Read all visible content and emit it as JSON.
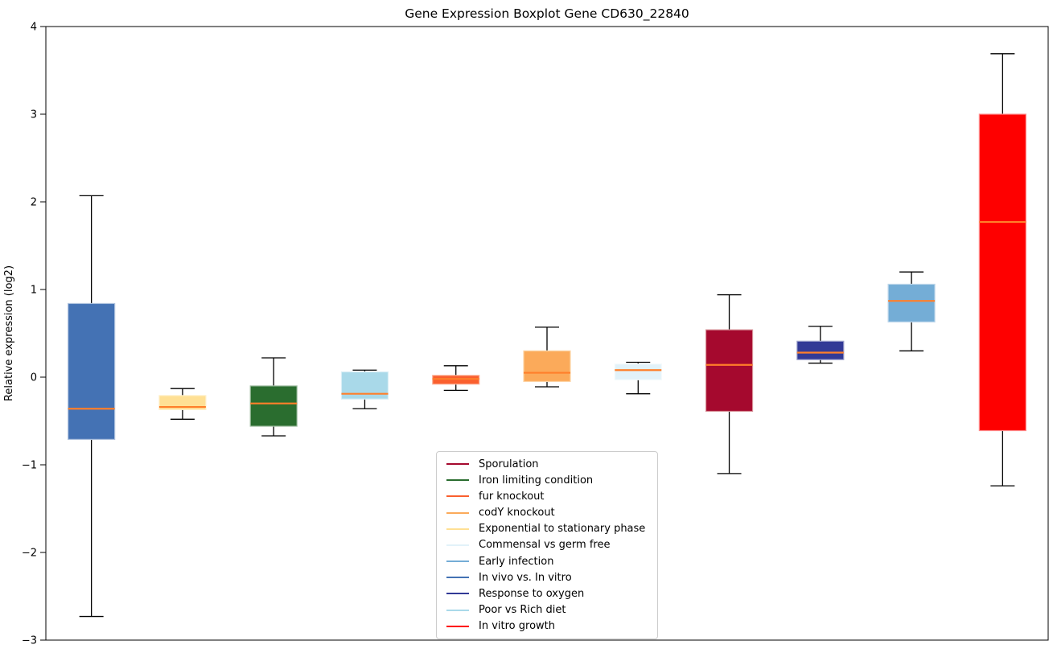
{
  "chart_data": {
    "type": "boxplot",
    "title": "Gene Expression Boxplot Gene CD630_22840",
    "ylabel": "Relative expression (log2)",
    "xlabel": "",
    "ylim": [
      -3,
      4
    ],
    "yticks": [
      4,
      3,
      2,
      1,
      0,
      -1,
      -2,
      -3
    ],
    "grid": false,
    "legend_position": "inside lower-center",
    "axis_color": "#000000",
    "whisker_color": "#000000",
    "median_color": "#ff7f2a",
    "series": [
      {
        "name": "In vivo vs. In vitro",
        "color": "#4472b4",
        "edge": "#abc0dd",
        "whisker_low": -2.73,
        "q1": -0.71,
        "median": -0.36,
        "q3": 0.84,
        "whisker_high": 2.07
      },
      {
        "name": "Exponential to stationary phase",
        "color": "#ffe094",
        "edge": "#ffefc9",
        "whisker_low": -0.48,
        "q1": -0.37,
        "median": -0.34,
        "q3": -0.21,
        "whisker_high": -0.13
      },
      {
        "name": "Iron limiting condition",
        "color": "#2a6d2f",
        "edge": "#9fbda1",
        "whisker_low": -0.67,
        "q1": -0.56,
        "median": -0.3,
        "q3": -0.1,
        "whisker_high": 0.22
      },
      {
        "name": "Poor vs Rich diet",
        "color": "#a9d9e9",
        "edge": "#d9eef5",
        "whisker_low": -0.36,
        "q1": -0.25,
        "median": -0.19,
        "q3": 0.06,
        "whisker_high": 0.08
      },
      {
        "name": "fur knockout",
        "color": "#fa5f2e",
        "edge": "#fcaf96",
        "whisker_low": -0.15,
        "q1": -0.08,
        "median": -0.02,
        "q3": 0.02,
        "whisker_high": 0.13
      },
      {
        "name": "codY knockout",
        "color": "#fbaa5a",
        "edge": "#fdd4a5",
        "whisker_low": -0.11,
        "q1": -0.05,
        "median": 0.05,
        "q3": 0.3,
        "whisker_high": 0.57
      },
      {
        "name": "Commensal vs germ free",
        "color": "#e2f2f9",
        "edge": "#f3fafc",
        "whisker_low": -0.19,
        "q1": -0.03,
        "median": 0.08,
        "q3": 0.15,
        "whisker_high": 0.17
      },
      {
        "name": "Sporulation",
        "color": "#a5092e",
        "edge": "#d79097",
        "whisker_low": -1.1,
        "q1": -0.39,
        "median": 0.14,
        "q3": 0.54,
        "whisker_high": 0.94
      },
      {
        "name": "Response to oxygen",
        "color": "#323a96",
        "edge": "#9da1cb",
        "whisker_low": 0.16,
        "q1": 0.2,
        "median": 0.28,
        "q3": 0.41,
        "whisker_high": 0.58
      },
      {
        "name": "Early infection",
        "color": "#74add6",
        "edge": "#bcd6ea",
        "whisker_low": 0.3,
        "q1": 0.63,
        "median": 0.87,
        "q3": 1.06,
        "whisker_high": 1.2
      },
      {
        "name": "In vitro growth",
        "color": "#fe0000",
        "edge": "#ff8c8c",
        "whisker_low": -1.24,
        "q1": -0.61,
        "median": 1.77,
        "q3": 3.0,
        "whisker_high": 3.69
      }
    ],
    "legend": [
      {
        "label": "Sporulation",
        "color": "#a5092e"
      },
      {
        "label": "Iron limiting condition",
        "color": "#2a6d2f"
      },
      {
        "label": "fur knockout",
        "color": "#fa5f2e"
      },
      {
        "label": "codY knockout",
        "color": "#fbaa5a"
      },
      {
        "label": "Exponential to stationary phase",
        "color": "#ffe094"
      },
      {
        "label": "Commensal vs germ free",
        "color": "#e2f2f9"
      },
      {
        "label": "Early infection",
        "color": "#74add6"
      },
      {
        "label": "In vivo vs. In vitro",
        "color": "#4472b4"
      },
      {
        "label": "Response to oxygen",
        "color": "#323a96"
      },
      {
        "label": "Poor vs Rich diet",
        "color": "#a9d9e9"
      },
      {
        "label": "In vitro growth",
        "color": "#fe0000"
      }
    ]
  }
}
